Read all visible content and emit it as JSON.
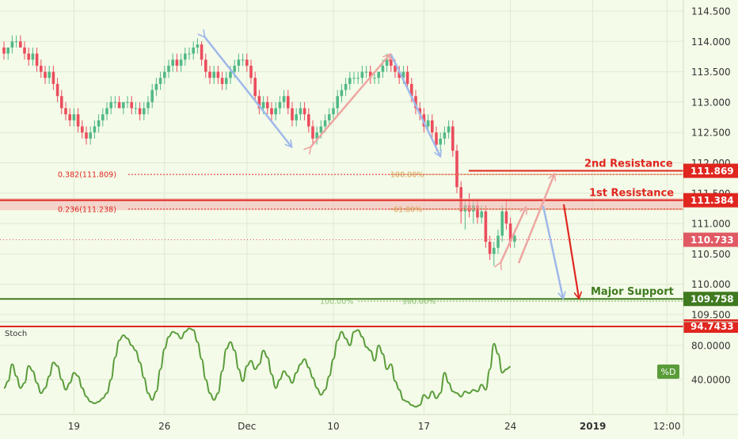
{
  "chart_data": {
    "type": "candlestick",
    "price_axis": {
      "ylim": [
        109.3,
        114.7
      ],
      "ticks": [
        "114.500",
        "114.000",
        "113.500",
        "113.000",
        "112.500",
        "112.000",
        "111.500",
        "111.000",
        "110.500",
        "110.000",
        "109.500"
      ]
    },
    "time_axis": {
      "ticks": [
        {
          "label": "19",
          "slot": 17
        },
        {
          "label": "26",
          "slot": 39
        },
        {
          "label": "Dec",
          "slot": 59
        },
        {
          "label": "10",
          "slot": 80
        },
        {
          "label": "17",
          "slot": 102
        },
        {
          "label": "24",
          "slot": 123
        },
        {
          "label": "2019",
          "slot": 143
        },
        {
          "label": "12:00",
          "slot": 161
        }
      ]
    },
    "candles": [
      [
        113.9,
        114.0,
        113.7,
        113.8
      ],
      [
        113.8,
        113.9,
        113.7,
        113.9
      ],
      [
        113.9,
        114.1,
        113.8,
        114.0
      ],
      [
        114.0,
        114.1,
        113.9,
        114.0
      ],
      [
        114.0,
        114.1,
        113.9,
        113.9
      ],
      [
        113.9,
        114.0,
        113.7,
        113.8
      ],
      [
        113.8,
        113.9,
        113.6,
        113.7
      ],
      [
        113.7,
        113.9,
        113.6,
        113.8
      ],
      [
        113.8,
        113.9,
        113.5,
        113.6
      ],
      [
        113.6,
        113.7,
        113.4,
        113.5
      ],
      [
        113.5,
        113.6,
        113.3,
        113.4
      ],
      [
        113.4,
        113.6,
        113.3,
        113.5
      ],
      [
        113.5,
        113.6,
        113.2,
        113.3
      ],
      [
        113.3,
        113.4,
        113.0,
        113.1
      ],
      [
        113.1,
        113.2,
        112.8,
        112.9
      ],
      [
        112.9,
        113.0,
        112.7,
        112.8
      ],
      [
        112.8,
        112.9,
        112.6,
        112.7
      ],
      [
        112.7,
        112.9,
        112.6,
        112.8
      ],
      [
        112.8,
        112.9,
        112.5,
        112.6
      ],
      [
        112.6,
        112.7,
        112.4,
        112.5
      ],
      [
        112.5,
        112.6,
        112.3,
        112.4
      ],
      [
        112.4,
        112.6,
        112.3,
        112.5
      ],
      [
        112.5,
        112.7,
        112.4,
        112.6
      ],
      [
        112.6,
        112.8,
        112.5,
        112.7
      ],
      [
        112.7,
        112.9,
        112.6,
        112.8
      ],
      [
        112.8,
        113.0,
        112.7,
        112.9
      ],
      [
        112.9,
        113.1,
        112.8,
        113.0
      ],
      [
        113.0,
        113.1,
        112.9,
        113.0
      ],
      [
        113.0,
        113.1,
        112.9,
        112.9
      ],
      [
        112.9,
        113.0,
        112.8,
        113.0
      ],
      [
        113.0,
        113.1,
        112.9,
        113.0
      ],
      [
        113.0,
        113.1,
        112.8,
        112.9
      ],
      [
        112.9,
        113.0,
        112.8,
        112.9
      ],
      [
        112.9,
        113.0,
        112.7,
        112.8
      ],
      [
        112.8,
        113.0,
        112.7,
        112.9
      ],
      [
        112.9,
        113.1,
        112.8,
        113.0
      ],
      [
        113.0,
        113.3,
        112.9,
        113.2
      ],
      [
        113.2,
        113.4,
        113.1,
        113.3
      ],
      [
        113.3,
        113.5,
        113.2,
        113.4
      ],
      [
        113.4,
        113.6,
        113.3,
        113.5
      ],
      [
        113.5,
        113.7,
        113.4,
        113.6
      ],
      [
        113.6,
        113.8,
        113.5,
        113.7
      ],
      [
        113.7,
        113.8,
        113.5,
        113.6
      ],
      [
        113.6,
        113.8,
        113.5,
        113.7
      ],
      [
        113.7,
        113.9,
        113.6,
        113.8
      ],
      [
        113.8,
        113.9,
        113.7,
        113.8
      ],
      [
        113.8,
        114.0,
        113.7,
        113.9
      ],
      [
        113.9,
        114.05,
        113.8,
        113.95
      ],
      [
        113.95,
        114.0,
        113.6,
        113.7
      ],
      [
        113.7,
        113.8,
        113.4,
        113.5
      ],
      [
        113.5,
        113.6,
        113.3,
        113.4
      ],
      [
        113.4,
        113.6,
        113.3,
        113.5
      ],
      [
        113.5,
        113.6,
        113.3,
        113.4
      ],
      [
        113.4,
        113.5,
        113.2,
        113.3
      ],
      [
        113.3,
        113.5,
        113.2,
        113.4
      ],
      [
        113.4,
        113.6,
        113.3,
        113.5
      ],
      [
        113.5,
        113.7,
        113.4,
        113.6
      ],
      [
        113.6,
        113.8,
        113.5,
        113.7
      ],
      [
        113.7,
        113.8,
        113.6,
        113.7
      ],
      [
        113.7,
        113.8,
        113.5,
        113.6
      ],
      [
        113.6,
        113.7,
        113.3,
        113.4
      ],
      [
        113.4,
        113.5,
        113.0,
        113.1
      ],
      [
        113.1,
        113.2,
        112.8,
        112.9
      ],
      [
        112.9,
        113.1,
        112.8,
        113.0
      ],
      [
        113.0,
        113.1,
        112.8,
        112.9
      ],
      [
        112.9,
        113.0,
        112.7,
        112.8
      ],
      [
        112.8,
        113.0,
        112.7,
        112.9
      ],
      [
        112.9,
        113.1,
        112.8,
        113.0
      ],
      [
        113.0,
        113.2,
        112.9,
        113.1
      ],
      [
        113.1,
        113.2,
        112.8,
        112.9
      ],
      [
        112.9,
        113.0,
        112.6,
        112.7
      ],
      [
        112.7,
        112.9,
        112.6,
        112.8
      ],
      [
        112.8,
        113.0,
        112.7,
        112.9
      ],
      [
        112.9,
        113.0,
        112.7,
        112.8
      ],
      [
        112.8,
        112.9,
        112.5,
        112.6
      ],
      [
        112.6,
        112.7,
        112.3,
        112.4
      ],
      [
        112.4,
        112.6,
        112.3,
        112.5
      ],
      [
        112.5,
        112.7,
        112.4,
        112.6
      ],
      [
        112.6,
        112.8,
        112.5,
        112.7
      ],
      [
        112.7,
        112.9,
        112.6,
        112.8
      ],
      [
        112.8,
        113.0,
        112.7,
        112.9
      ],
      [
        112.9,
        113.2,
        112.8,
        113.1
      ],
      [
        113.1,
        113.3,
        113.0,
        113.2
      ],
      [
        113.2,
        113.4,
        113.1,
        113.3
      ],
      [
        113.3,
        113.5,
        113.2,
        113.4
      ],
      [
        113.4,
        113.5,
        113.3,
        113.4
      ],
      [
        113.4,
        113.5,
        113.3,
        113.4
      ],
      [
        113.4,
        113.6,
        113.3,
        113.5
      ],
      [
        113.5,
        113.6,
        113.4,
        113.5
      ],
      [
        113.5,
        113.6,
        113.3,
        113.4
      ],
      [
        113.4,
        113.5,
        113.3,
        113.4
      ],
      [
        113.4,
        113.5,
        113.3,
        113.5
      ],
      [
        113.5,
        113.7,
        113.4,
        113.6
      ],
      [
        113.6,
        113.8,
        113.5,
        113.7
      ],
      [
        113.7,
        113.8,
        113.5,
        113.6
      ],
      [
        113.6,
        113.7,
        113.4,
        113.5
      ],
      [
        113.5,
        113.6,
        113.3,
        113.4
      ],
      [
        113.4,
        113.6,
        113.3,
        113.5
      ],
      [
        113.5,
        113.6,
        113.2,
        113.3
      ],
      [
        113.3,
        113.4,
        113.0,
        113.1
      ],
      [
        113.1,
        113.2,
        112.8,
        112.9
      ],
      [
        112.9,
        113.0,
        112.7,
        112.8
      ],
      [
        112.8,
        112.9,
        112.5,
        112.6
      ],
      [
        112.6,
        112.8,
        112.5,
        112.7
      ],
      [
        112.7,
        112.8,
        112.4,
        112.5
      ],
      [
        112.5,
        112.6,
        112.2,
        112.3
      ],
      [
        112.3,
        112.5,
        112.2,
        112.4
      ],
      [
        112.4,
        112.6,
        112.3,
        112.5
      ],
      [
        112.5,
        112.7,
        112.4,
        112.6
      ],
      [
        112.6,
        112.7,
        112.1,
        112.2
      ],
      [
        112.2,
        112.3,
        111.5,
        111.6
      ],
      [
        111.6,
        111.7,
        111.0,
        111.2
      ],
      [
        111.2,
        111.4,
        110.9,
        111.3
      ],
      [
        111.3,
        111.5,
        111.1,
        111.2
      ],
      [
        111.2,
        111.4,
        111.0,
        111.3
      ],
      [
        111.3,
        111.4,
        111.0,
        111.1
      ],
      [
        111.1,
        111.3,
        111.0,
        111.2
      ],
      [
        111.2,
        111.3,
        110.6,
        110.7
      ],
      [
        110.7,
        110.8,
        110.4,
        110.5
      ],
      [
        110.5,
        110.7,
        110.3,
        110.6
      ],
      [
        110.6,
        110.9,
        110.5,
        110.8
      ],
      [
        110.8,
        111.3,
        110.7,
        111.2
      ],
      [
        111.2,
        111.4,
        110.9,
        111.0
      ],
      [
        111.0,
        111.1,
        110.6,
        110.7
      ],
      [
        110.7,
        110.9,
        110.6,
        110.8
      ]
    ],
    "last_price": "110.733",
    "levels": [
      {
        "name": "2nd Resistance",
        "price": 111.869,
        "label": "111.869",
        "color": "#e0261f"
      },
      {
        "name": "1st Resistance",
        "price": 111.384,
        "label": "111.384",
        "color": "#e0261f"
      },
      {
        "name": "Major Support",
        "price": 109.758,
        "label": "109.758",
        "color": "#3f7a1f"
      }
    ],
    "fibonacci": [
      {
        "label": "0.382(111.809)",
        "price": 111.809
      },
      {
        "label": "0.236(111.238)",
        "price": 111.238
      },
      {
        "label": "100.00%",
        "price": 111.809
      },
      {
        "label": "61.80%",
        "price": 111.238
      },
      {
        "label": "100.00%",
        "price": 109.72
      },
      {
        "label": "100.00%",
        "price": 109.72
      }
    ],
    "stoch": {
      "name": "Stoch",
      "ylim": [
        0,
        105
      ],
      "ticks": [
        "80.0000",
        "40.0000"
      ],
      "level_label": "94.7433",
      "legend": "%D",
      "values": [
        30,
        38,
        58,
        44,
        30,
        36,
        56,
        50,
        36,
        24,
        30,
        44,
        60,
        56,
        40,
        28,
        36,
        48,
        44,
        30,
        20,
        14,
        12,
        14,
        18,
        24,
        40,
        66,
        86,
        92,
        88,
        80,
        74,
        60,
        42,
        24,
        16,
        26,
        52,
        76,
        90,
        96,
        94,
        88,
        96,
        100,
        98,
        84,
        64,
        40,
        24,
        16,
        24,
        50,
        76,
        84,
        74,
        52,
        38,
        56,
        62,
        52,
        58,
        74,
        66,
        46,
        30,
        40,
        50,
        44,
        36,
        48,
        58,
        64,
        54,
        42,
        30,
        22,
        28,
        44,
        64,
        86,
        96,
        88,
        80,
        96,
        98,
        90,
        78,
        74,
        62,
        80,
        70,
        52,
        58,
        38,
        28,
        16,
        14,
        10,
        8,
        10,
        22,
        18,
        26,
        18,
        24,
        48,
        36,
        26,
        24,
        20,
        26,
        24,
        28,
        26,
        34,
        28,
        52,
        82,
        70,
        48,
        52,
        55
      ]
    }
  }
}
